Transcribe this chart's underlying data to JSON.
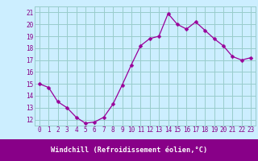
{
  "x": [
    0,
    1,
    2,
    3,
    4,
    5,
    6,
    7,
    8,
    9,
    10,
    11,
    12,
    13,
    14,
    15,
    16,
    17,
    18,
    19,
    20,
    21,
    22,
    23
  ],
  "y": [
    15.0,
    14.7,
    13.5,
    13.0,
    12.2,
    11.7,
    11.8,
    12.2,
    13.3,
    14.9,
    16.6,
    18.2,
    18.8,
    19.0,
    20.9,
    20.0,
    19.6,
    20.2,
    19.5,
    18.8,
    18.2,
    17.3,
    17.0,
    17.2
  ],
  "line_color": "#990099",
  "marker": "D",
  "marker_size": 2.5,
  "bg_color": "#cceeff",
  "grid_color": "#99cccc",
  "ylabel_ticks": [
    12,
    13,
    14,
    15,
    16,
    17,
    18,
    19,
    20,
    21
  ],
  "xlabel": "Windchill (Refroidissement éolien,°C)",
  "xlabel_bg": "#880088",
  "xlabel_fg": "#ffffff",
  "ylim": [
    11.5,
    21.5
  ],
  "xlim": [
    -0.5,
    23.5
  ],
  "tick_color": "#880088",
  "tick_fontsize": 5.5,
  "xlabel_fontsize": 6.2
}
